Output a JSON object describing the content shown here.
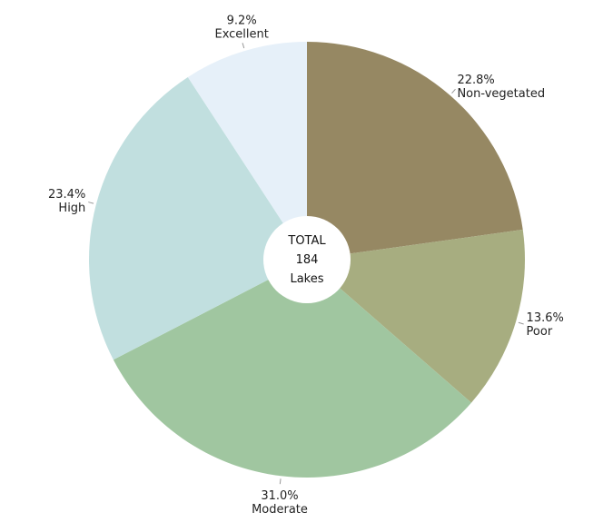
{
  "chart_data": {
    "type": "pie",
    "variant": "donut",
    "slices": [
      {
        "label": "Non-vegetated",
        "percent_label": "22.8%",
        "value": 22.8,
        "color": "#968863"
      },
      {
        "label": "Poor",
        "percent_label": "13.6%",
        "value": 13.6,
        "color": "#a7ad80"
      },
      {
        "label": "Moderate",
        "percent_label": "31.0%",
        "value": 31.0,
        "color": "#a0c6a0"
      },
      {
        "label": "High",
        "percent_label": "23.4%",
        "value": 23.4,
        "color": "#c1dfdf"
      },
      {
        "label": "Excellent",
        "percent_label": "9.2%",
        "value": 9.2,
        "color": "#e6f0f9"
      }
    ],
    "center": {
      "line1": "TOTAL",
      "line2": "184",
      "line3": "Lakes"
    },
    "start_angle": "12 o'clock",
    "direction": "clockwise"
  }
}
